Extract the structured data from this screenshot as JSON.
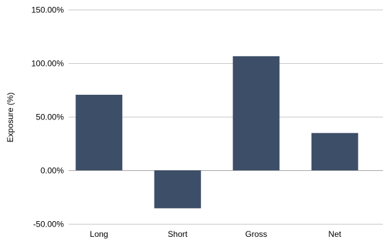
{
  "chart_data": {
    "type": "bar",
    "categories": [
      "Long",
      "Short",
      "Gross",
      "Net"
    ],
    "values": [
      70.5,
      -35.5,
      106.5,
      34.8
    ],
    "ylabel": "Exposure (%)",
    "ylim": [
      -50,
      150
    ],
    "yticks": [
      -50,
      0,
      50,
      100,
      150
    ],
    "ytick_labels": [
      "-50.00%",
      "0.00%",
      "50.00%",
      "100.00%",
      "150.00%"
    ],
    "grid": true,
    "bar_color": "#3d4e68",
    "gridline_color": "#c8c8c8"
  }
}
